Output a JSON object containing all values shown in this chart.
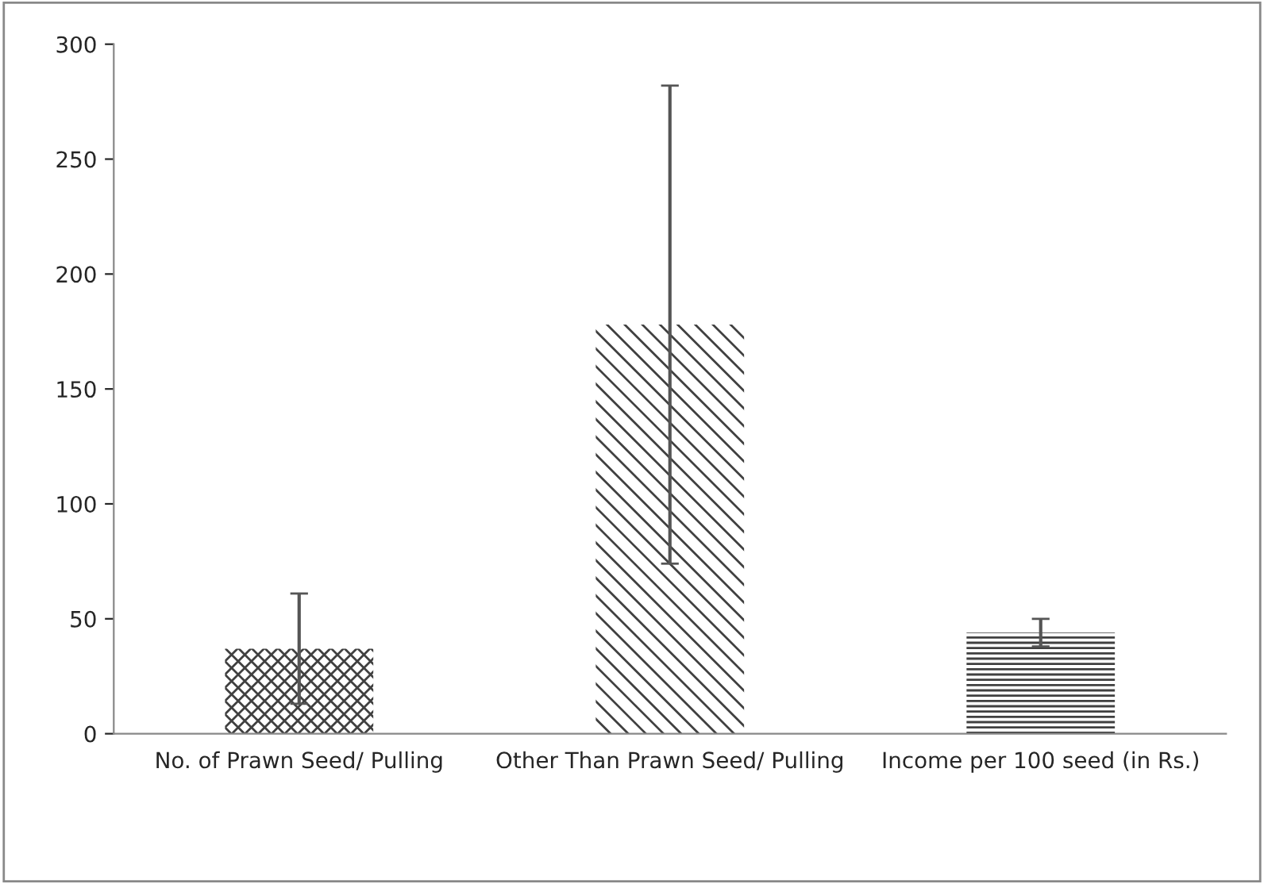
{
  "chart_data": {
    "type": "bar",
    "categories": [
      "No. of Prawn Seed/ Pulling",
      "Other Than Prawn Seed/ Pulling",
      "Income per 100 seed (in Rs.)"
    ],
    "values": [
      37,
      178,
      44
    ],
    "errors": [
      24,
      104,
      6
    ],
    "colors": [
      "#404040",
      "#404040",
      "#404040"
    ],
    "ylim": [
      0,
      300
    ],
    "yticks": [
      0,
      50,
      100,
      150,
      200,
      250,
      300
    ],
    "grid": false
  }
}
